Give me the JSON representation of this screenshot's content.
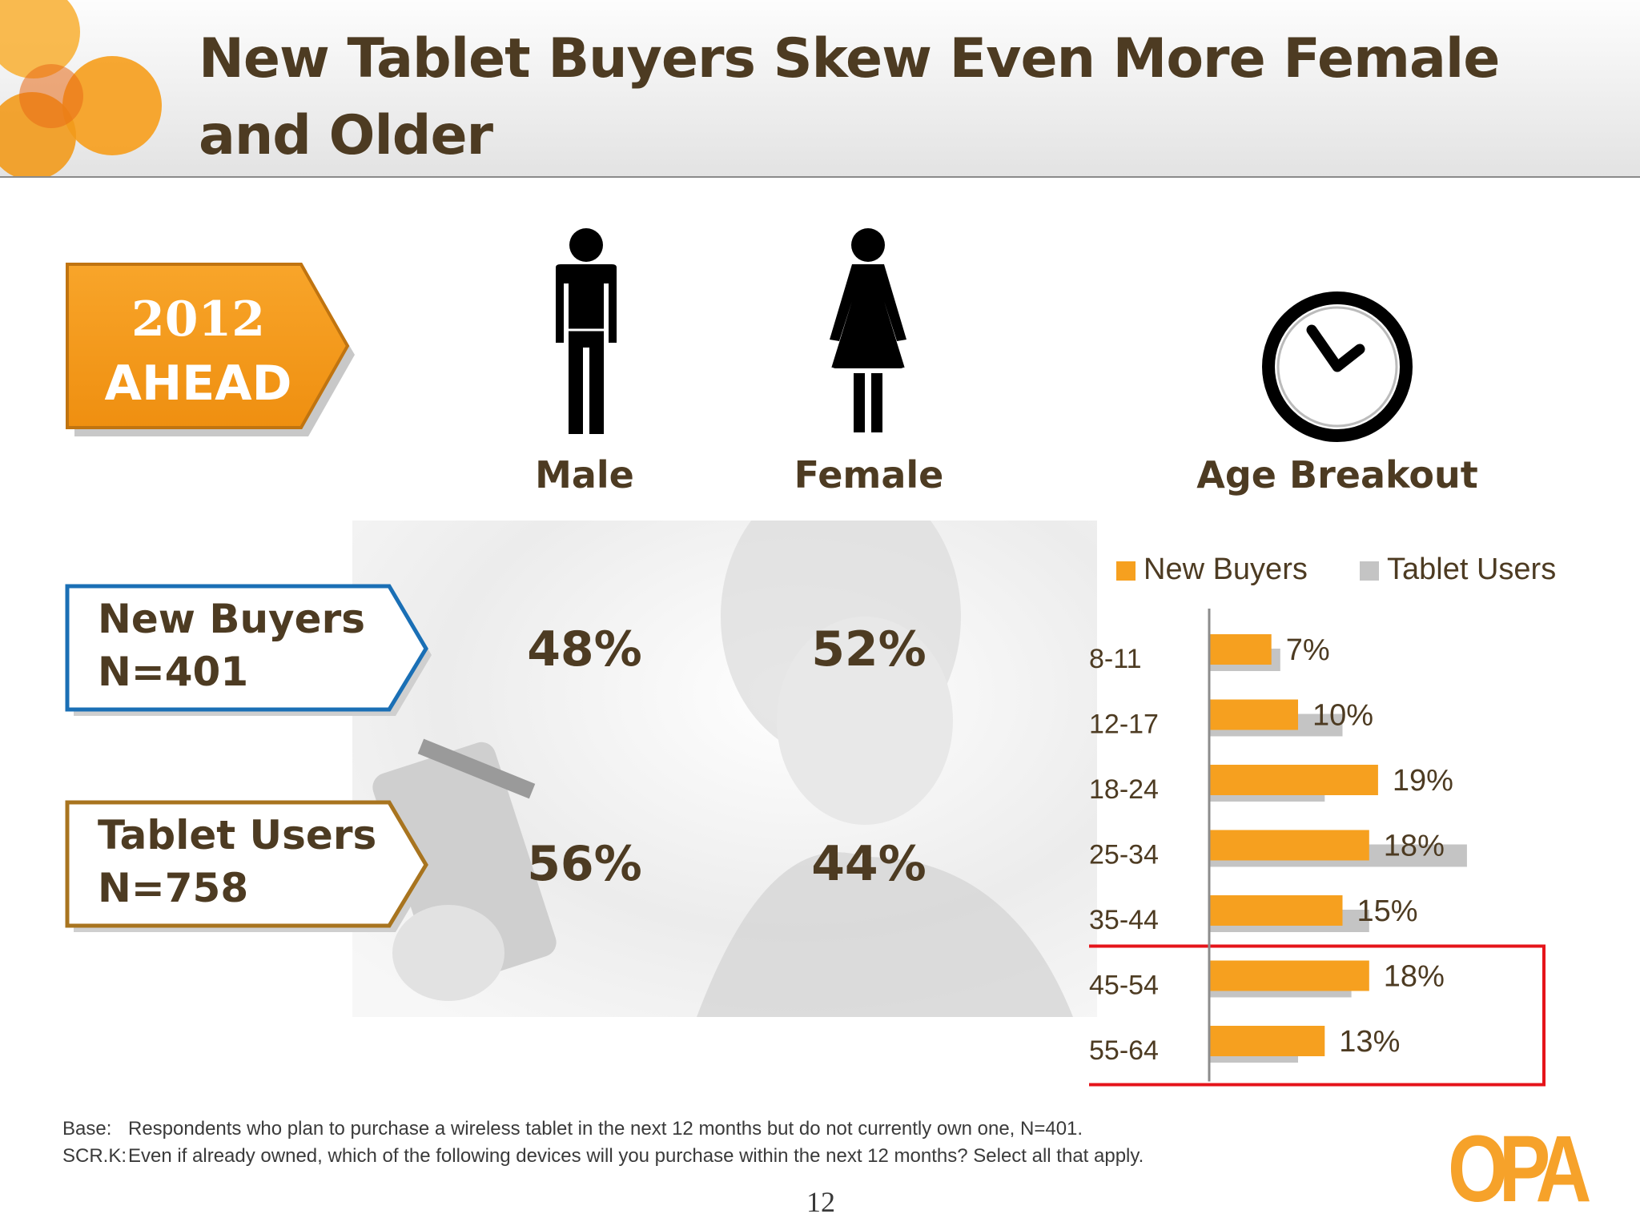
{
  "title": "New Tablet Buyers Skew Even More Female and Older",
  "badge": {
    "line1": "2012",
    "line2": "AHEAD"
  },
  "groups": [
    {
      "name": "New Buyers",
      "n": "N=401",
      "male": "48%",
      "female": "52%",
      "border_color": "#1a6fb5"
    },
    {
      "name": "Tablet Users",
      "n": "N=758",
      "male": "56%",
      "female": "44%",
      "border_color": "#a8741f"
    }
  ],
  "columns": {
    "male": "Male",
    "female": "Female",
    "age": "Age Breakout"
  },
  "icons": {
    "male": "male-figure-icon",
    "female": "female-figure-icon",
    "age": "clock-icon",
    "logo": "opa-logo"
  },
  "colors": {
    "new_buyers": "#f6a01f",
    "tablet_users": "#c4c4c4",
    "highlight": "#e5141a",
    "title": "#4d3b22"
  },
  "chart_data": {
    "type": "bar",
    "orientation": "horizontal",
    "categories": [
      "8-11",
      "12-17",
      "18-24",
      "25-34",
      "35-44",
      "45-54",
      "55-64"
    ],
    "series": [
      {
        "name": "New Buyers",
        "values": [
          7,
          10,
          19,
          18,
          15,
          18,
          13
        ],
        "labels": [
          "7%",
          "10%",
          "19%",
          "18%",
          "15%",
          "18%",
          "13%"
        ]
      },
      {
        "name": "Tablet Users",
        "values": [
          8,
          15,
          13,
          29,
          18,
          16,
          10
        ]
      }
    ],
    "xlim": [
      0,
      30
    ],
    "legend": "top",
    "grid": false,
    "highlight": [
      "45-54",
      "55-64"
    ]
  },
  "footnotes": [
    {
      "key": "Base:",
      "text": "Respondents who plan to purchase a wireless tablet in the next 12 months but do not currently own one, N=401."
    },
    {
      "key": "SCR.K:",
      "text": "Even if already owned, which of the following devices will you purchase within the next 12 months? Select all that apply."
    }
  ],
  "page_number": "12",
  "logo_text": "OPA"
}
